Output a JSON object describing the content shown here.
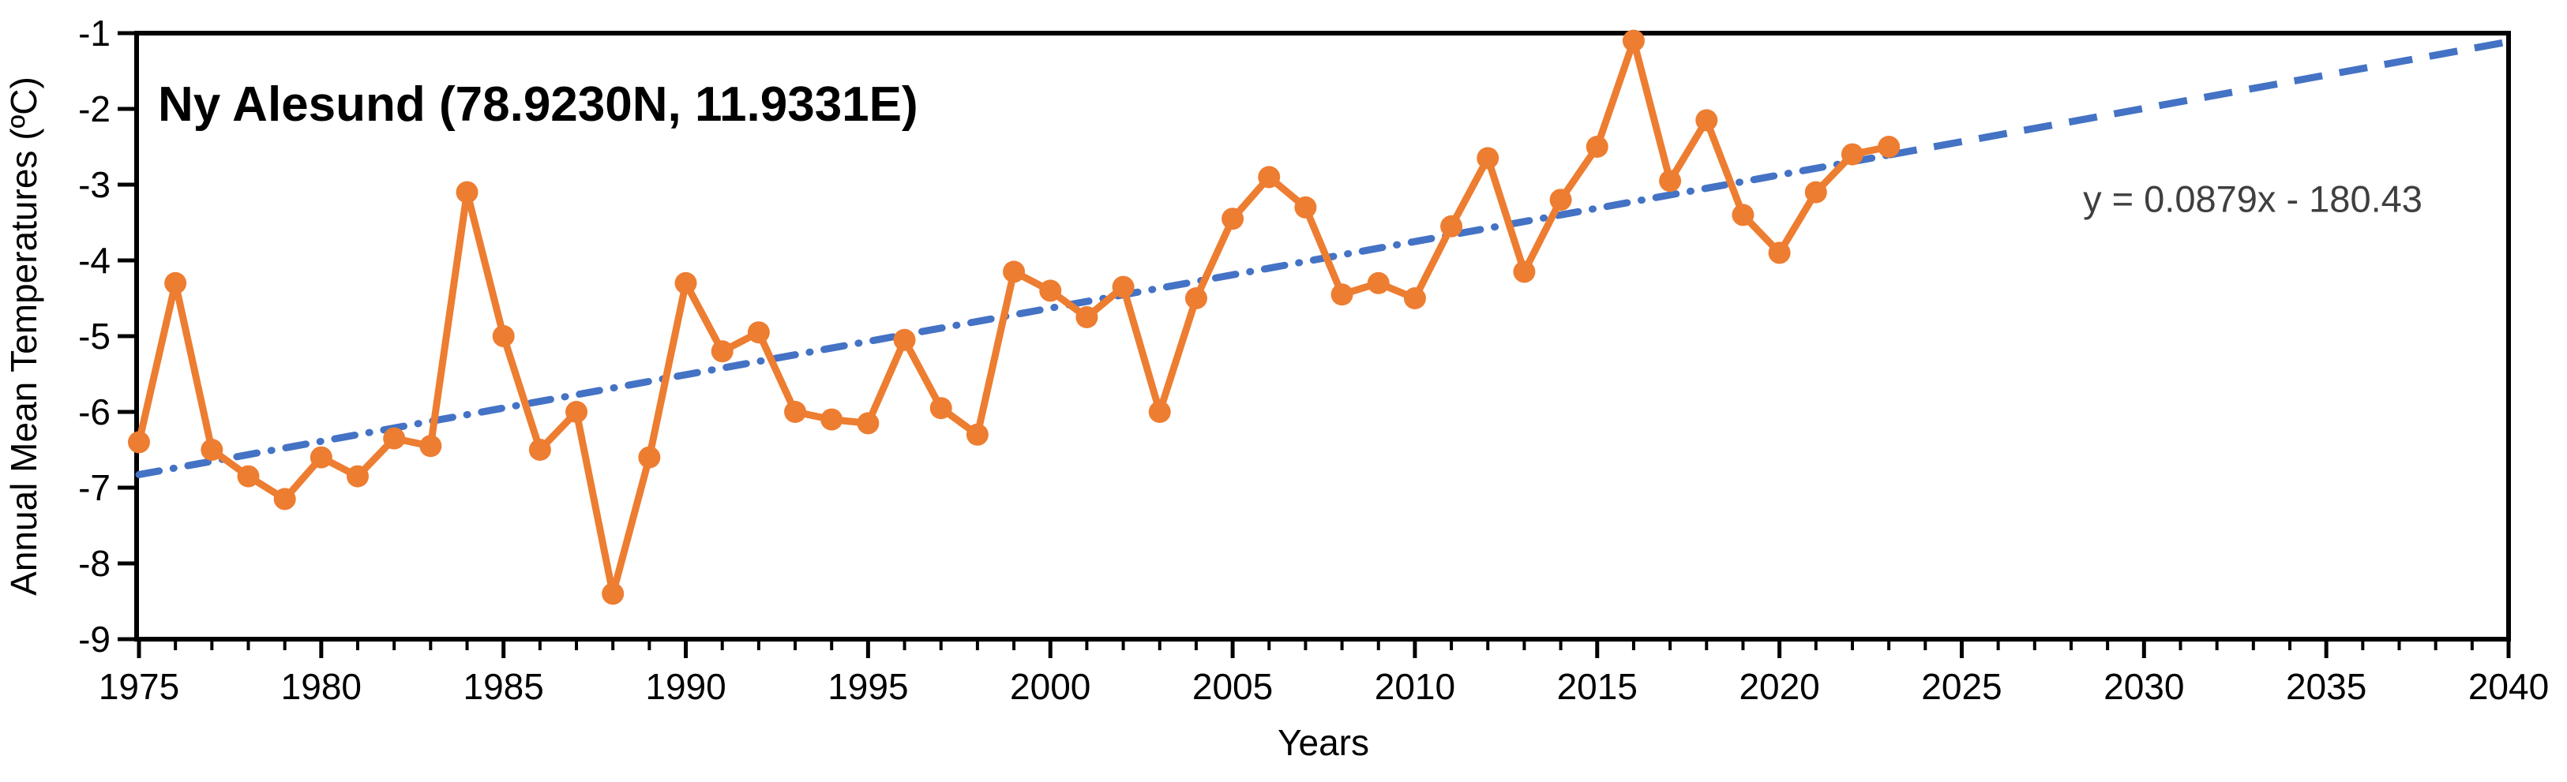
{
  "chart_data": {
    "type": "line",
    "title": "Ny Alesund (78.9230N, 11.9331E)",
    "xlabel": "Years",
    "ylabel": "Annual Mean Temperatures (ºC)",
    "xlim": [
      1975,
      2040
    ],
    "ylim": [
      -9,
      -1
    ],
    "x_tick_step_major": 5,
    "x_tick_step_minor": 1,
    "y_tick_step": 1,
    "grid": false,
    "legend": "none",
    "background": "#ffffff",
    "axis_color": "#000000",
    "text_color": "#000000",
    "series": [
      {
        "name": "Annual mean temperature",
        "color": "#ED7D31",
        "marker": "circle",
        "x": [
          1975,
          1976,
          1977,
          1978,
          1979,
          1980,
          1981,
          1982,
          1983,
          1984,
          1985,
          1986,
          1987,
          1988,
          1989,
          1990,
          1991,
          1992,
          1993,
          1994,
          1995,
          1996,
          1997,
          1998,
          1999,
          2000,
          2001,
          2002,
          2003,
          2004,
          2005,
          2006,
          2007,
          2008,
          2009,
          2010,
          2011,
          2012,
          2013,
          2014,
          2015,
          2016,
          2017,
          2018,
          2019,
          2020,
          2021,
          2022,
          2023
        ],
        "y": [
          -6.4,
          -4.3,
          -6.5,
          -6.85,
          -7.15,
          -6.6,
          -6.85,
          -6.35,
          -6.45,
          -3.1,
          -5.0,
          -6.5,
          -6.0,
          -8.4,
          -6.6,
          -4.3,
          -5.2,
          -4.95,
          -6.0,
          -6.1,
          -6.15,
          -5.05,
          -5.95,
          -6.3,
          -4.15,
          -4.4,
          -4.75,
          -4.35,
          -6.0,
          -4.5,
          -3.45,
          -2.9,
          -3.3,
          -4.45,
          -4.3,
          -4.5,
          -3.55,
          -2.65,
          -4.15,
          -3.2,
          -2.5,
          -1.1,
          -2.95,
          -2.15,
          -3.4,
          -3.9,
          -3.1,
          -2.6,
          -2.5
        ]
      }
    ],
    "trendline": {
      "label": "y = 0.0879x - 180.43",
      "slope": 0.0879,
      "intercept": -180.43,
      "color": "#4472C4",
      "style_fitted": "dash-dot-dot",
      "style_forecast": "long-dash",
      "x_start": 1975,
      "x_fitted_end": 2023,
      "x_end": 2040,
      "label_color": "#3f3f3f"
    }
  }
}
